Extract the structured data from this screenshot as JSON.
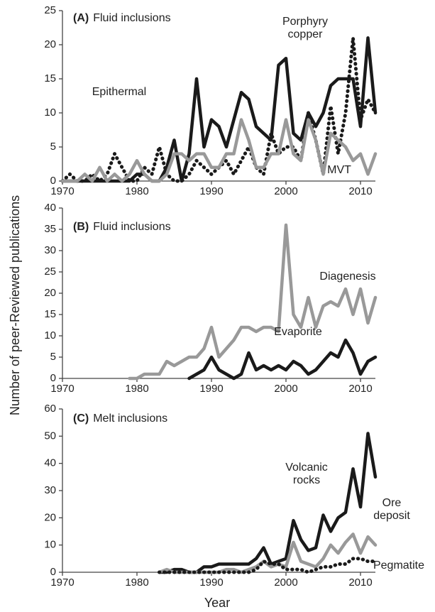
{
  "y_label": "Number of peer-Reviewed publications",
  "x_label": "Year",
  "chart_data": [
    {
      "type": "line",
      "panel": "(A)",
      "title": "Fluid inclusions",
      "x": [
        1970,
        1971,
        1972,
        1973,
        1974,
        1975,
        1976,
        1977,
        1978,
        1979,
        1980,
        1981,
        1982,
        1983,
        1984,
        1985,
        1986,
        1987,
        1988,
        1989,
        1990,
        1991,
        1992,
        1993,
        1994,
        1995,
        1996,
        1997,
        1998,
        1999,
        2000,
        2001,
        2002,
        2003,
        2004,
        2005,
        2006,
        2007,
        2008,
        2009,
        2010,
        2011,
        2012
      ],
      "xlim": [
        1970,
        2012
      ],
      "xticks": [
        1970,
        1980,
        1990,
        2000,
        2010
      ],
      "ylim": [
        0,
        25
      ],
      "yticks": [
        0,
        5,
        10,
        15,
        20,
        25
      ],
      "series": [
        {
          "name": "Epithermal",
          "color": "#1a1a1a",
          "style": "solid",
          "values": [
            0,
            0,
            0,
            0,
            0,
            0,
            0,
            0,
            0,
            0,
            1,
            1,
            0,
            0,
            2,
            6,
            0,
            4,
            15,
            5,
            9,
            8,
            5,
            9,
            13,
            12,
            8,
            7,
            6,
            17,
            18,
            7,
            6,
            10,
            8,
            10,
            14,
            15,
            15,
            15,
            8,
            21,
            10
          ]
        },
        {
          "name": "Porphyry copper",
          "color": "#1a1a1a",
          "style": "dotted",
          "values": [
            0,
            1,
            0,
            0,
            1,
            0,
            1,
            4,
            2,
            0,
            0,
            2,
            1,
            5,
            1,
            0,
            0,
            1,
            3,
            2,
            1,
            2,
            3,
            1,
            3,
            5,
            2,
            1,
            7,
            4,
            5,
            5,
            3,
            10,
            6,
            1,
            11,
            4,
            10,
            21,
            9,
            12,
            10
          ]
        },
        {
          "name": "MVT",
          "color": "#999999",
          "style": "solid",
          "values": [
            0,
            0,
            0,
            1,
            0,
            2,
            0,
            1,
            0,
            1,
            3,
            1,
            0,
            0,
            1,
            4,
            4,
            3,
            4,
            4,
            2,
            2,
            4,
            4,
            9,
            6,
            2,
            2,
            4,
            4,
            9,
            4,
            3,
            9,
            6,
            1,
            7,
            6,
            5,
            3,
            4,
            1,
            4
          ]
        }
      ]
    },
    {
      "type": "line",
      "panel": "(B)",
      "title": "Fluid inclusions",
      "x": [
        1970,
        1971,
        1972,
        1973,
        1974,
        1975,
        1976,
        1977,
        1978,
        1979,
        1980,
        1981,
        1982,
        1983,
        1984,
        1985,
        1986,
        1987,
        1988,
        1989,
        1990,
        1991,
        1992,
        1993,
        1994,
        1995,
        1996,
        1997,
        1998,
        1999,
        2000,
        2001,
        2002,
        2003,
        2004,
        2005,
        2006,
        2007,
        2008,
        2009,
        2010,
        2011,
        2012
      ],
      "xlim": [
        1970,
        2012
      ],
      "xticks": [
        1970,
        1980,
        1990,
        2000,
        2010
      ],
      "ylim": [
        0,
        40
      ],
      "yticks": [
        0,
        5,
        10,
        15,
        20,
        25,
        30,
        35,
        40
      ],
      "series": [
        {
          "name": "Diagenesis",
          "color": "#999999",
          "style": "solid",
          "values": [
            null,
            null,
            null,
            null,
            null,
            null,
            null,
            null,
            null,
            0,
            0,
            1,
            1,
            1,
            4,
            3,
            4,
            5,
            5,
            7,
            12,
            5,
            7,
            9,
            12,
            12,
            11,
            12,
            12,
            11,
            36,
            15,
            12,
            19,
            12,
            17,
            18,
            17,
            21,
            15,
            21,
            13,
            19
          ]
        },
        {
          "name": "Evaporite",
          "color": "#1a1a1a",
          "style": "solid",
          "values": [
            null,
            null,
            null,
            null,
            null,
            null,
            null,
            null,
            null,
            null,
            null,
            null,
            null,
            null,
            null,
            null,
            null,
            0,
            1,
            2,
            5,
            2,
            1,
            0,
            1,
            6,
            2,
            3,
            2,
            3,
            2,
            4,
            3,
            1,
            2,
            4,
            6,
            5,
            9,
            6,
            1,
            4,
            5
          ]
        }
      ]
    },
    {
      "type": "line",
      "panel": "(C)",
      "title": "Melt inclusions",
      "x": [
        1970,
        1971,
        1972,
        1973,
        1974,
        1975,
        1976,
        1977,
        1978,
        1979,
        1980,
        1981,
        1982,
        1983,
        1984,
        1985,
        1986,
        1987,
        1988,
        1989,
        1990,
        1991,
        1992,
        1993,
        1994,
        1995,
        1996,
        1997,
        1998,
        1999,
        2000,
        2001,
        2002,
        2003,
        2004,
        2005,
        2006,
        2007,
        2008,
        2009,
        2010,
        2011,
        2012
      ],
      "xlim": [
        1970,
        2012
      ],
      "xticks": [
        1970,
        1980,
        1990,
        2000,
        2010
      ],
      "ylim": [
        0,
        60
      ],
      "yticks": [
        0,
        10,
        20,
        30,
        40,
        50,
        60
      ],
      "series": [
        {
          "name": "Volcanic rocks",
          "color": "#1a1a1a",
          "style": "solid",
          "values": [
            null,
            null,
            null,
            null,
            null,
            null,
            null,
            null,
            null,
            null,
            null,
            null,
            null,
            0,
            0,
            1,
            1,
            0,
            0,
            2,
            2,
            3,
            3,
            3,
            3,
            3,
            5,
            9,
            3,
            4,
            5,
            19,
            12,
            8,
            9,
            21,
            15,
            20,
            22,
            38,
            24,
            51,
            35
          ]
        },
        {
          "name": "Ore deposit",
          "color": "#999999",
          "style": "solid",
          "values": [
            null,
            null,
            null,
            null,
            null,
            null,
            null,
            null,
            null,
            null,
            null,
            null,
            null,
            0,
            1,
            0,
            0,
            0,
            0,
            0,
            0,
            0,
            1,
            1,
            0,
            1,
            2,
            4,
            2,
            3,
            2,
            11,
            4,
            3,
            2,
            5,
            10,
            7,
            11,
            14,
            7,
            13,
            10
          ]
        },
        {
          "name": "Pegmatite",
          "color": "#1a1a1a",
          "style": "dotted",
          "values": [
            null,
            null,
            null,
            null,
            null,
            null,
            null,
            null,
            null,
            null,
            null,
            null,
            null,
            0,
            0,
            0,
            0,
            0,
            0,
            0,
            0,
            0,
            0,
            0,
            0,
            0,
            1,
            4,
            3,
            3,
            1,
            1,
            1,
            0,
            1,
            2,
            2,
            3,
            3,
            5,
            5,
            4,
            4
          ]
        }
      ]
    }
  ]
}
